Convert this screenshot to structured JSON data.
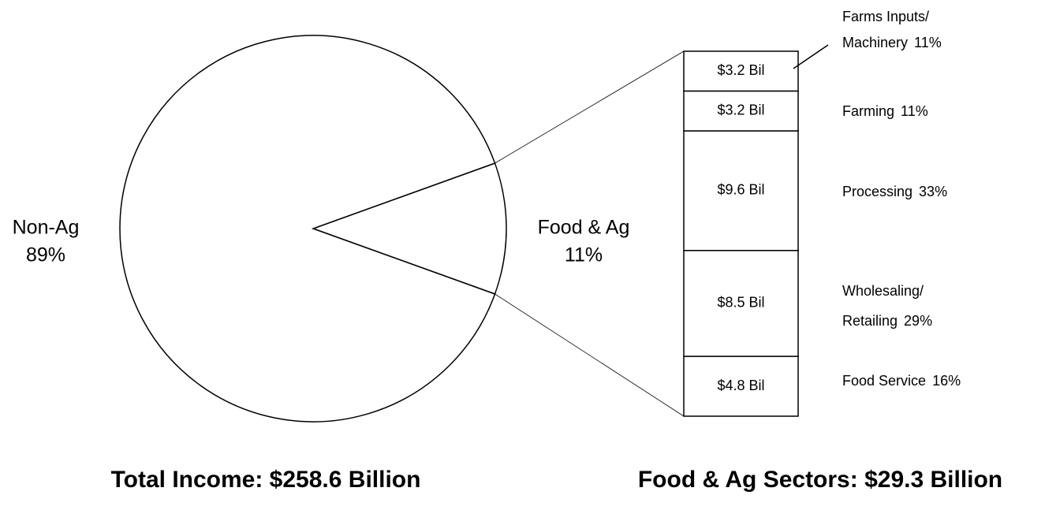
{
  "chart_data": [
    {
      "type": "pie",
      "title": "Total Income: $258.6 Billion",
      "categories": [
        "Non-Ag",
        "Food & Ag"
      ],
      "values": [
        89,
        11
      ],
      "value_labels": [
        "89%",
        "11%"
      ],
      "color": "#ffffff"
    },
    {
      "type": "stacked_bar",
      "title": "Food & Ag Sectors: $29.3 Billion",
      "categories": [
        [
          "Farms Inputs/",
          "Machinery"
        ],
        [
          "Farming"
        ],
        [
          "Processing"
        ],
        [
          "Wholesaling/",
          "Retailing"
        ],
        [
          "Food Service"
        ]
      ],
      "values": [
        3.2,
        3.2,
        9.6,
        8.5,
        4.8
      ],
      "value_labels": [
        "$3.2 Bil",
        "$3.2 Bil",
        "$9.6 Bil",
        "$8.5 Bil",
        "$4.8 Bil"
      ],
      "shares": [
        11,
        11,
        33,
        29,
        16
      ],
      "share_labels": [
        "11%",
        "11%",
        "33%",
        "29%",
        "16%"
      ],
      "color": "#ffffff"
    }
  ]
}
